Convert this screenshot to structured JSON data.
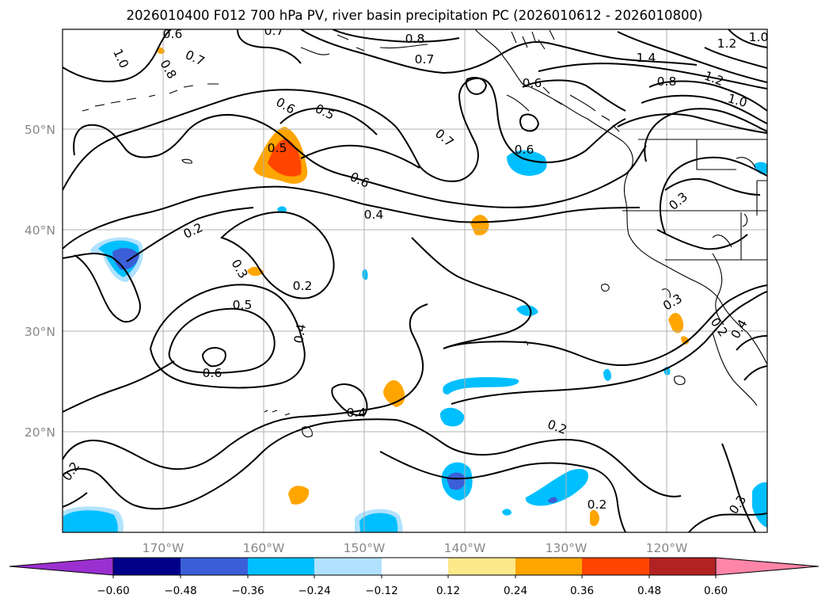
{
  "title": "2026010400 F012 700 hPa PV, river basin precipitation PC (2026010612 - 2026010800)",
  "map": {
    "lon_ticks": [
      "170°W",
      "160°W",
      "150°W",
      "140°W",
      "130°W",
      "120°W"
    ],
    "lat_ticks": [
      "50°N",
      "40°N",
      "30°N",
      "20°N"
    ]
  },
  "contour_labels": [
    "0.6",
    "0.7",
    "1.0",
    "0.8",
    "0.7",
    "0.8",
    "0.7",
    "1.4",
    "1.2",
    "1.0",
    "0.8",
    "1.2",
    "1.0",
    "0.6",
    "0.5",
    "0.5",
    "0.7",
    "0.6",
    "0.6",
    "0.3",
    "0.2",
    "0.4",
    "0.3",
    "0.2",
    "0.5",
    "0.4",
    "0.6",
    "0.4",
    "0.2",
    "0.2",
    "0.2",
    "0.3",
    "0.3",
    "0.4",
    "0.2",
    "0.6"
  ],
  "colorbar": {
    "colors": [
      "#9b30d0",
      "#00008b",
      "#3b5fd6",
      "#00bfff",
      "#b0e2ff",
      "#ffffff",
      "#fde88a",
      "#ffa500",
      "#ff4500",
      "#b22222",
      "#ff85a8"
    ],
    "ticks": [
      "−0.60",
      "−0.48",
      "−0.36",
      "−0.24",
      "−0.12",
      "0.12",
      "0.24",
      "0.36",
      "0.48",
      "0.60"
    ]
  }
}
